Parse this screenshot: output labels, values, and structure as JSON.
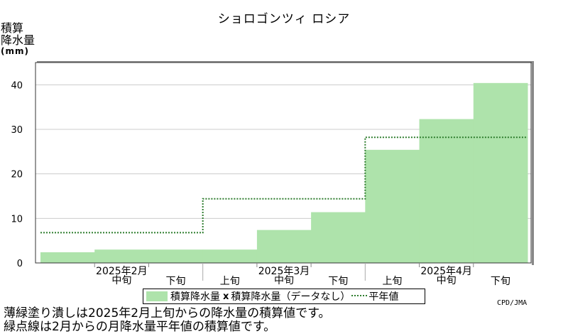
{
  "chart_data": {
    "type": "bar",
    "title": "ショロゴンツィ ロシア",
    "ylabel": "積算\n降水量",
    "yunit": "(mm)",
    "ylim": [
      0,
      45
    ],
    "yticks": [
      0,
      10,
      20,
      30,
      40
    ],
    "grid": true,
    "categories": [
      "2月上旬",
      "2月中旬",
      "2月下旬",
      "3月上旬",
      "3月中旬",
      "3月下旬",
      "4月上旬",
      "4月中旬",
      "4月下旬"
    ],
    "period_labels": [
      "",
      "中旬",
      "下旬",
      "上旬",
      "中旬",
      "下旬",
      "上旬",
      "中旬",
      "下旬"
    ],
    "month_labels": [
      {
        "text": "2025年2月",
        "period": 1
      },
      {
        "text": "2025年3月",
        "period": 4
      },
      {
        "text": "2025年4月",
        "period": 7
      }
    ],
    "series": [
      {
        "name": "積算降水量",
        "kind": "bar",
        "color": "#aee3ab",
        "values": [
          2.4,
          3.0,
          3.0,
          3.0,
          7.4,
          11.4,
          25.4,
          32.3,
          40.4
        ]
      },
      {
        "name": "平年値",
        "kind": "step-dotted",
        "color": "#2e7d2e",
        "values": [
          6.8,
          6.8,
          6.8,
          14.4,
          14.4,
          14.4,
          28.2,
          28.2,
          28.2
        ]
      }
    ],
    "legend": {
      "position": "bottom",
      "items": [
        "積算降水量",
        "x",
        "積算降水量（データなし）",
        "平年値"
      ]
    }
  },
  "credit": "CPD/JMA",
  "notes": [
    "薄緑塗り潰しは2025年2月上旬からの降水量の積算値です。",
    "緑点線は2月からの月降水量平年値の積算値です。"
  ]
}
